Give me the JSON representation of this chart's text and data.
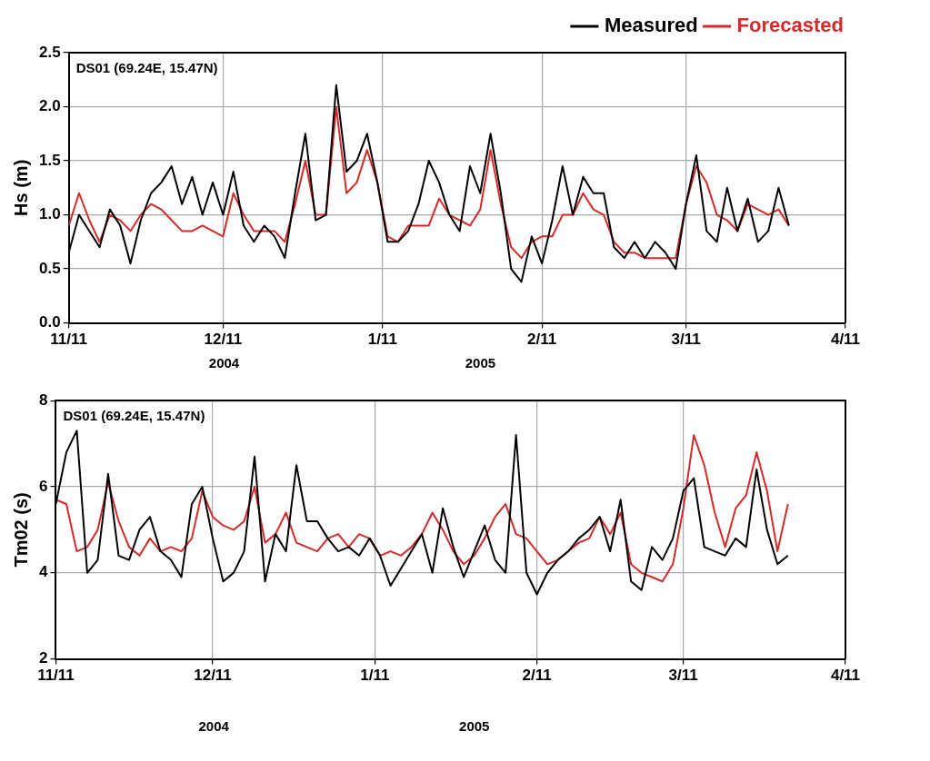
{
  "chart_data": [
    {
      "type": "line",
      "ylabel": "Hs (m)",
      "annotations": [
        "DS01 (69.24E, 15.47N)",
        "2004",
        "2005"
      ],
      "legend": "top right",
      "grid": true,
      "marker": "none",
      "x": [
        "2004-11-11",
        "2004-11-13",
        "2004-11-15",
        "2004-11-17",
        "2004-11-19",
        "2004-11-21",
        "2004-11-23",
        "2004-11-25",
        "2004-11-27",
        "2004-11-29",
        "2004-12-01",
        "2004-12-03",
        "2004-12-05",
        "2004-12-07",
        "2004-12-09",
        "2004-12-11",
        "2004-12-13",
        "2004-12-15",
        "2004-12-17",
        "2004-12-19",
        "2004-12-21",
        "2004-12-23",
        "2004-12-25",
        "2004-12-27",
        "2004-12-29",
        "2004-12-31",
        "2005-01-02",
        "2005-01-04",
        "2005-01-06",
        "2005-01-08",
        "2005-01-10",
        "2005-01-12",
        "2005-01-14",
        "2005-01-16",
        "2005-01-18",
        "2005-01-20",
        "2005-01-22",
        "2005-01-24",
        "2005-01-26",
        "2005-01-28",
        "2005-01-30",
        "2005-02-01",
        "2005-02-03",
        "2005-02-05",
        "2005-02-07",
        "2005-02-09",
        "2005-02-11",
        "2005-02-13",
        "2005-02-15",
        "2005-02-17",
        "2005-02-19",
        "2005-02-21",
        "2005-02-23",
        "2005-02-25",
        "2005-02-27",
        "2005-03-01",
        "2005-03-03",
        "2005-03-05",
        "2005-03-07",
        "2005-03-09",
        "2005-03-11",
        "2005-03-13",
        "2005-03-15",
        "2005-03-17",
        "2005-03-19",
        "2005-03-21",
        "2005-03-23",
        "2005-03-25",
        "2005-03-27",
        "2005-03-29",
        "2005-03-31"
      ],
      "xlim": [
        "2004-11-11",
        "2005-04-11"
      ],
      "xticks": [
        {
          "value": "2004-11-11",
          "label": "11/11"
        },
        {
          "value": "2004-12-11",
          "label": "12/11"
        },
        {
          "value": "2005-01-11",
          "label": "1/11"
        },
        {
          "value": "2005-02-11",
          "label": "2/11"
        },
        {
          "value": "2005-03-11",
          "label": "3/11"
        },
        {
          "value": "2005-04-11",
          "label": "4/11"
        }
      ],
      "ylim": [
        0,
        2.5
      ],
      "yticks": [
        {
          "value": 0,
          "label": "0.0"
        },
        {
          "value": 0.5,
          "label": "0.5"
        },
        {
          "value": 1,
          "label": "1.0"
        },
        {
          "value": 1.5,
          "label": "1.5"
        },
        {
          "value": 2,
          "label": "2.0"
        },
        {
          "value": 2.5,
          "label": "2.5"
        }
      ],
      "series": [
        {
          "name": "Measured",
          "color": "#000000",
          "values": [
            0.65,
            1.0,
            0.85,
            0.7,
            1.05,
            0.9,
            0.55,
            0.95,
            1.2,
            1.3,
            1.45,
            1.1,
            1.35,
            1.0,
            1.3,
            1.0,
            1.4,
            0.9,
            0.75,
            0.9,
            0.8,
            0.6,
            1.2,
            1.75,
            0.95,
            1.0,
            2.2,
            1.4,
            1.5,
            1.75,
            1.3,
            0.75,
            0.75,
            0.85,
            1.1,
            1.5,
            1.3,
            1.0,
            0.85,
            1.45,
            1.2,
            1.75,
            1.2,
            0.5,
            0.38,
            0.8,
            0.55,
            0.95,
            1.45,
            1.0,
            1.35,
            1.2,
            1.2,
            0.7,
            0.6,
            0.75,
            0.6,
            0.75,
            0.65,
            0.5,
            1.1,
            1.55,
            0.85,
            0.75,
            1.25,
            0.85,
            1.15,
            0.75,
            0.85,
            1.25,
            0.9
          ]
        },
        {
          "name": "Forecasted",
          "color": "#d42a2a",
          "values": [
            0.9,
            1.2,
            0.95,
            0.75,
            1.0,
            0.95,
            0.85,
            1.0,
            1.1,
            1.05,
            0.95,
            0.85,
            0.85,
            0.9,
            0.85,
            0.8,
            1.2,
            1.0,
            0.85,
            0.85,
            0.85,
            0.75,
            1.1,
            1.5,
            1.0,
            1.0,
            2.0,
            1.2,
            1.3,
            1.6,
            1.3,
            0.8,
            0.75,
            0.9,
            0.9,
            0.9,
            1.15,
            1.0,
            0.95,
            0.9,
            1.05,
            1.6,
            1.1,
            0.7,
            0.6,
            0.75,
            0.8,
            0.8,
            1.0,
            1.0,
            1.2,
            1.05,
            1.0,
            0.75,
            0.65,
            0.65,
            0.6,
            0.6,
            0.6,
            0.6,
            1.1,
            1.45,
            1.3,
            1.0,
            0.95,
            0.85,
            1.1,
            1.05,
            1.0,
            1.05,
            0.9
          ]
        }
      ]
    },
    {
      "type": "line",
      "ylabel": "Tm02 (s)",
      "annotations": [
        "DS01 (69.24E, 15.47N)",
        "2004",
        "2005"
      ],
      "grid": true,
      "marker": "none",
      "x": [
        "2004-11-11",
        "2004-11-13",
        "2004-11-15",
        "2004-11-17",
        "2004-11-19",
        "2004-11-21",
        "2004-11-23",
        "2004-11-25",
        "2004-11-27",
        "2004-11-29",
        "2004-12-01",
        "2004-12-03",
        "2004-12-05",
        "2004-12-07",
        "2004-12-09",
        "2004-12-11",
        "2004-12-13",
        "2004-12-15",
        "2004-12-17",
        "2004-12-19",
        "2004-12-21",
        "2004-12-23",
        "2004-12-25",
        "2004-12-27",
        "2004-12-29",
        "2004-12-31",
        "2005-01-02",
        "2005-01-04",
        "2005-01-06",
        "2005-01-08",
        "2005-01-10",
        "2005-01-12",
        "2005-01-14",
        "2005-01-16",
        "2005-01-18",
        "2005-01-20",
        "2005-01-22",
        "2005-01-24",
        "2005-01-26",
        "2005-01-28",
        "2005-01-30",
        "2005-02-01",
        "2005-02-03",
        "2005-02-05",
        "2005-02-07",
        "2005-02-09",
        "2005-02-11",
        "2005-02-13",
        "2005-02-15",
        "2005-02-17",
        "2005-02-19",
        "2005-02-21",
        "2005-02-23",
        "2005-02-25",
        "2005-02-27",
        "2005-03-01",
        "2005-03-03",
        "2005-03-05",
        "2005-03-07",
        "2005-03-09",
        "2005-03-11",
        "2005-03-13",
        "2005-03-15",
        "2005-03-17",
        "2005-03-19",
        "2005-03-21",
        "2005-03-23",
        "2005-03-25",
        "2005-03-27",
        "2005-03-29",
        "2005-03-31"
      ],
      "xlim": [
        "2004-11-11",
        "2005-04-11"
      ],
      "xticks": [
        {
          "value": "2004-11-11",
          "label": "11/11"
        },
        {
          "value": "2004-12-11",
          "label": "12/11"
        },
        {
          "value": "2005-01-11",
          "label": "1/11"
        },
        {
          "value": "2005-02-11",
          "label": "2/11"
        },
        {
          "value": "2005-03-11",
          "label": "3/11"
        },
        {
          "value": "2005-04-11",
          "label": "4/11"
        }
      ],
      "ylim": [
        2,
        8
      ],
      "yticks": [
        2,
        4,
        6,
        8
      ],
      "series": [
        {
          "color": "#000000",
          "values": [
            5.6,
            6.8,
            7.3,
            4.0,
            4.3,
            6.3,
            4.4,
            4.3,
            5.0,
            5.3,
            4.5,
            4.3,
            3.9,
            5.6,
            6.0,
            4.8,
            3.8,
            4.0,
            4.5,
            6.7,
            3.8,
            4.9,
            4.5,
            6.5,
            5.2,
            5.2,
            4.8,
            4.5,
            4.6,
            4.4,
            4.8,
            4.4,
            3.7,
            4.1,
            4.5,
            4.9,
            4.0,
            5.5,
            4.6,
            3.9,
            4.5,
            5.1,
            4.3,
            4.0,
            7.2,
            4.0,
            3.5,
            4.0,
            4.3,
            4.5,
            4.8,
            5.0,
            5.3,
            4.5,
            5.7,
            3.8,
            3.6,
            4.6,
            4.3,
            4.8,
            5.9,
            6.2,
            4.6,
            4.5,
            4.4,
            4.8,
            4.6,
            6.4,
            5.0,
            4.2,
            4.4
          ]
        },
        {
          "color": "#d42a2a",
          "values": [
            5.7,
            5.6,
            4.5,
            4.6,
            5.0,
            6.1,
            5.2,
            4.6,
            4.4,
            4.8,
            4.5,
            4.6,
            4.5,
            4.8,
            5.9,
            5.3,
            5.1,
            5.0,
            5.2,
            6.0,
            4.7,
            4.9,
            5.4,
            4.7,
            4.6,
            4.5,
            4.8,
            4.9,
            4.6,
            4.9,
            4.8,
            4.4,
            4.5,
            4.4,
            4.6,
            4.9,
            5.4,
            5.0,
            4.5,
            4.2,
            4.4,
            4.8,
            5.3,
            5.6,
            4.9,
            4.8,
            4.5,
            4.2,
            4.3,
            4.5,
            4.7,
            4.8,
            5.3,
            4.9,
            5.4,
            4.2,
            4.0,
            3.9,
            3.8,
            4.2,
            5.5,
            7.2,
            6.5,
            5.4,
            4.6,
            5.5,
            5.8,
            6.8,
            5.9,
            4.5,
            5.6
          ]
        }
      ]
    }
  ]
}
